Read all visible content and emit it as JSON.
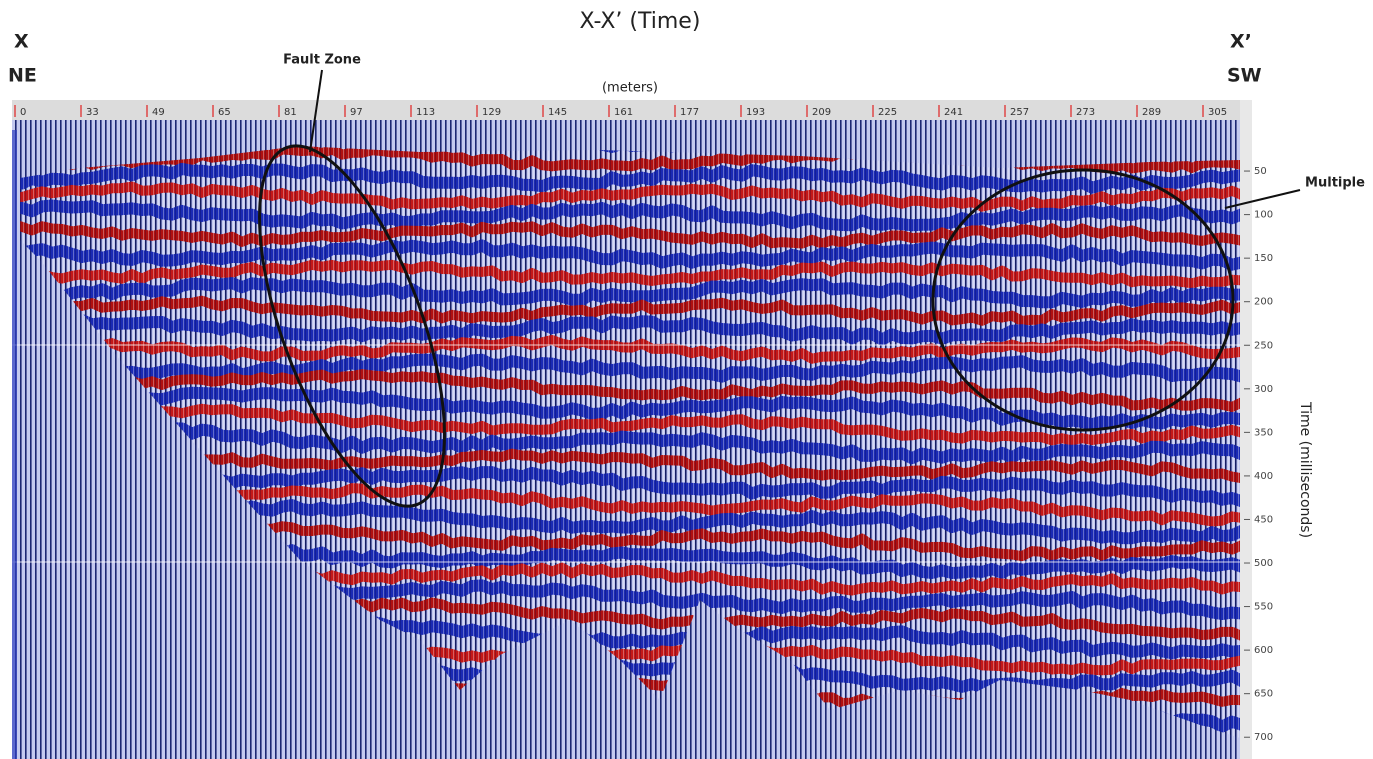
{
  "title": "X-X’ (Time)",
  "left_end": {
    "label": "X",
    "direction": "NE"
  },
  "right_end": {
    "label": "X’",
    "direction": "SW"
  },
  "annotations": {
    "fault_zone": "Fault Zone",
    "multiple": "Multiple"
  },
  "x_axis": {
    "label": "(meters)",
    "ticks": [
      0,
      33,
      49,
      65,
      81,
      97,
      113,
      129,
      145,
      161,
      177,
      193,
      209,
      225,
      241,
      257,
      273,
      289,
      305
    ]
  },
  "y_axis": {
    "label": "Time (milliseconds)",
    "range": [
      0,
      725
    ],
    "ticks": [
      50,
      100,
      150,
      200,
      250,
      300,
      350,
      400,
      450,
      500,
      550,
      600,
      650,
      700
    ]
  }
}
